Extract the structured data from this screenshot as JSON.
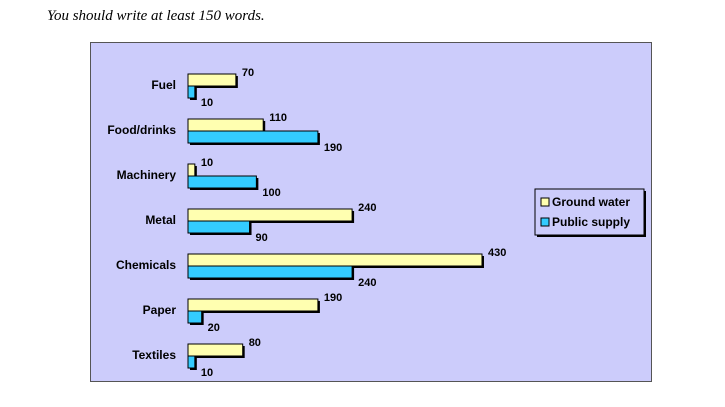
{
  "instruction": "You should write at least 150 words.",
  "colors": {
    "panel_bg": "#ccccfb",
    "ground_water": "#ffffb0",
    "public_supply": "#33ccff",
    "shadow": "#000000"
  },
  "chart_data": {
    "type": "bar",
    "orientation": "horizontal",
    "categories": [
      "Fuel",
      "Food/drinks",
      "Machinery",
      "Metal",
      "Chemicals",
      "Paper",
      "Textiles"
    ],
    "series": [
      {
        "name": "Ground water",
        "values": [
          70,
          110,
          10,
          240,
          430,
          190,
          80
        ]
      },
      {
        "name": "Public supply",
        "values": [
          10,
          190,
          100,
          90,
          240,
          20,
          10
        ]
      }
    ],
    "title": "",
    "xlabel": "",
    "ylabel": "",
    "xlim": [
      0,
      430
    ],
    "legend_position": "right",
    "grid": false
  }
}
